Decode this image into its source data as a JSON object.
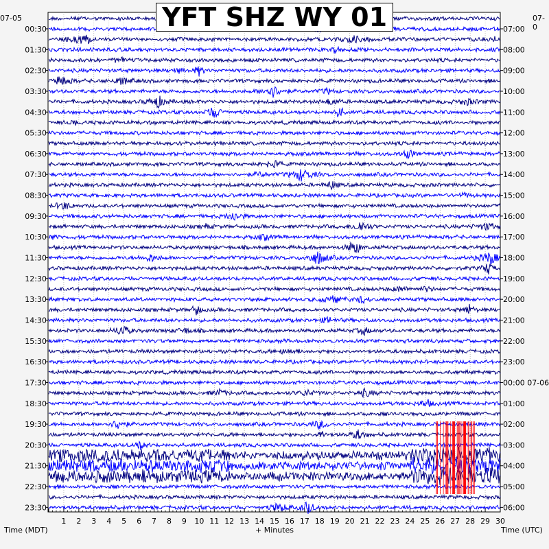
{
  "chart_data": {
    "type": "line",
    "title": "YFT SHZ WY 01",
    "xlabel": "+ Minutes",
    "ylabel_left": "Time (MDT)",
    "ylabel_right": "Time (UTC)",
    "date_left": "07-05",
    "date_right": "07-0",
    "x_ticks": [
      "1",
      "2",
      "3",
      "4",
      "5",
      "6",
      "7",
      "8",
      "9",
      "10",
      "11",
      "12",
      "13",
      "14",
      "15",
      "16",
      "17",
      "18",
      "19",
      "20",
      "21",
      "22",
      "23",
      "24",
      "25",
      "26",
      "27",
      "28",
      "29",
      "30"
    ],
    "xlim": [
      0,
      30
    ],
    "left_times": [
      "00:30",
      "01:30",
      "02:30",
      "03:30",
      "04:30",
      "05:30",
      "06:30",
      "07:30",
      "08:30",
      "09:30",
      "10:30",
      "11:30",
      "12:30",
      "13:30",
      "14:30",
      "15:30",
      "16:30",
      "17:30",
      "18:30",
      "19:30",
      "20:30",
      "21:30",
      "22:30",
      "23:30"
    ],
    "right_times": [
      "07:00",
      "08:00",
      "09:00",
      "10:00",
      "11:00",
      "12:00",
      "13:00",
      "14:00",
      "15:00",
      "16:00",
      "17:00",
      "18:00",
      "19:00",
      "20:00",
      "21:00",
      "22:00",
      "23:00",
      "00:00 07-06",
      "01:00",
      "02:00",
      "03:00",
      "04:00",
      "05:00",
      "06:00"
    ],
    "trace_count": 48,
    "trace_colors": [
      "#000080",
      "#0000ff"
    ],
    "clipped_color": "#ff0000",
    "grid": true
  }
}
